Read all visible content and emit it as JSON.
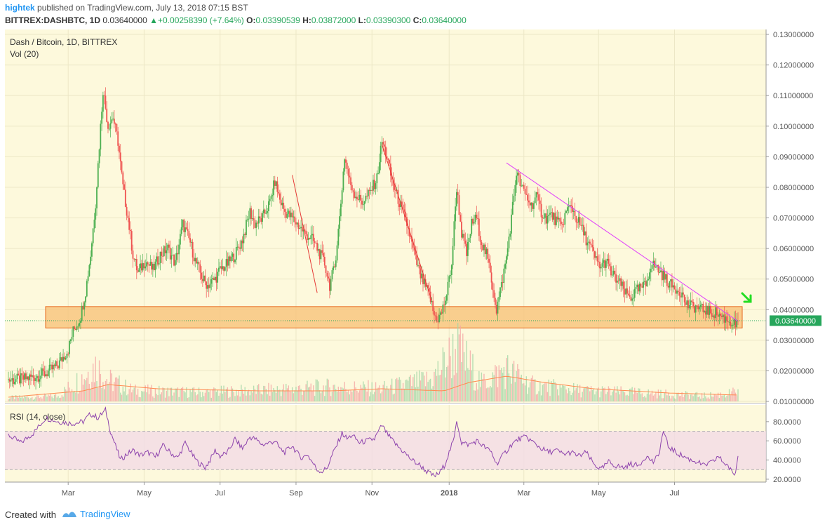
{
  "header": {
    "author": "hightek",
    "published_text": "published on TradingView.com, July 13, 2018 07:15 BST",
    "symbol": "BITTREX:DASHBTC, 1D",
    "last_price": "0.03640000",
    "change": "+0.00258390 (+7.64%)",
    "o_label": "O:",
    "o_value": "0.03390539",
    "h_label": "H:",
    "h_value": "0.03872000",
    "l_label": "L:",
    "l_value": "0.03390300",
    "c_label": "C:",
    "c_value": "0.03640000"
  },
  "legend": {
    "series_title": "Dash / Bitcoin, 1D, BITTREX",
    "volume_label": "Vol (20)",
    "rsi_label": "RSI (14, close)"
  },
  "footer": {
    "created_with": "Created with",
    "brand": "TradingView"
  },
  "colors": {
    "up": "#4caf50",
    "down": "#ef5350",
    "background": "#fdf9dc",
    "support_zone": "#f8c37a",
    "support_border": "#e8651a",
    "trend_red": "#e53935",
    "trend_magenta": "#e040fb",
    "rsi_line": "#8e44ad",
    "rsi_band": "#f3dbe6",
    "price_label_bg": "#26a65b",
    "arrow": "#22dd22"
  },
  "chart_data": [
    {
      "type": "candlestick",
      "title": "Dash / Bitcoin, 1D, BITTREX",
      "x_ticks": [
        "Mar",
        "May",
        "Jul",
        "Sep",
        "Nov",
        "2018",
        "Mar",
        "May",
        "Jul"
      ],
      "y_ticks": [
        "0.13000000",
        "0.12000000",
        "0.11000000",
        "0.10000000",
        "0.09000000",
        "0.08000000",
        "0.07000000",
        "0.06000000",
        "0.05000000",
        "0.04000000",
        "0.03000000",
        "0.02000000",
        "0.01000000"
      ],
      "y_range": [
        0.01,
        0.13
      ],
      "last_price_label": "0.03640000",
      "last_price": 0.0364,
      "close_series": [
        [
          0,
          0.017
        ],
        [
          10,
          0.0172
        ],
        [
          20,
          0.018
        ],
        [
          30,
          0.0192
        ],
        [
          40,
          0.022
        ],
        [
          48,
          0.027
        ],
        [
          52,
          0.033
        ],
        [
          56,
          0.036
        ],
        [
          58,
          0.038
        ],
        [
          62,
          0.046
        ],
        [
          66,
          0.058
        ],
        [
          70,
          0.075
        ],
        [
          74,
          0.1
        ],
        [
          76,
          0.112
        ],
        [
          80,
          0.1
        ],
        [
          84,
          0.103
        ],
        [
          88,
          0.095
        ],
        [
          92,
          0.08
        ],
        [
          96,
          0.07
        ],
        [
          100,
          0.058
        ],
        [
          104,
          0.052
        ],
        [
          110,
          0.056
        ],
        [
          116,
          0.053
        ],
        [
          122,
          0.058
        ],
        [
          128,
          0.06
        ],
        [
          134,
          0.055
        ],
        [
          140,
          0.068
        ],
        [
          146,
          0.062
        ],
        [
          150,
          0.056
        ],
        [
          156,
          0.05
        ],
        [
          160,
          0.048
        ],
        [
          166,
          0.05
        ],
        [
          170,
          0.053
        ],
        [
          176,
          0.055
        ],
        [
          182,
          0.058
        ],
        [
          188,
          0.063
        ],
        [
          194,
          0.072
        ],
        [
          198,
          0.068
        ],
        [
          204,
          0.07
        ],
        [
          210,
          0.075
        ],
        [
          214,
          0.082
        ],
        [
          218,
          0.076
        ],
        [
          222,
          0.072
        ],
        [
          228,
          0.07
        ],
        [
          232,
          0.068
        ],
        [
          238,
          0.065
        ],
        [
          244,
          0.063
        ],
        [
          248,
          0.06
        ],
        [
          254,
          0.055
        ],
        [
          258,
          0.048
        ],
        [
          262,
          0.054
        ],
        [
          266,
          0.07
        ],
        [
          270,
          0.09
        ],
        [
          274,
          0.082
        ],
        [
          278,
          0.078
        ],
        [
          284,
          0.075
        ],
        [
          290,
          0.078
        ],
        [
          296,
          0.083
        ],
        [
          300,
          0.095
        ],
        [
          304,
          0.09
        ],
        [
          308,
          0.082
        ],
        [
          314,
          0.075
        ],
        [
          320,
          0.068
        ],
        [
          326,
          0.058
        ],
        [
          330,
          0.052
        ],
        [
          334,
          0.048
        ],
        [
          338,
          0.045
        ],
        [
          342,
          0.038
        ],
        [
          345,
          0.037
        ],
        [
          348,
          0.039
        ],
        [
          352,
          0.045
        ],
        [
          356,
          0.055
        ],
        [
          360,
          0.08
        ],
        [
          364,
          0.065
        ],
        [
          368,
          0.058
        ],
        [
          372,
          0.068
        ],
        [
          376,
          0.07
        ],
        [
          380,
          0.062
        ],
        [
          384,
          0.058
        ],
        [
          388,
          0.05
        ],
        [
          392,
          0.04
        ],
        [
          396,
          0.048
        ],
        [
          400,
          0.057
        ],
        [
          404,
          0.07
        ],
        [
          408,
          0.085
        ],
        [
          412,
          0.08
        ],
        [
          416,
          0.077
        ],
        [
          420,
          0.074
        ],
        [
          424,
          0.077
        ],
        [
          428,
          0.072
        ],
        [
          432,
          0.07
        ],
        [
          436,
          0.071
        ],
        [
          440,
          0.069
        ],
        [
          444,
          0.067
        ],
        [
          448,
          0.072
        ],
        [
          452,
          0.074
        ],
        [
          456,
          0.07
        ],
        [
          460,
          0.067
        ],
        [
          464,
          0.063
        ],
        [
          468,
          0.06
        ],
        [
          472,
          0.056
        ],
        [
          476,
          0.054
        ],
        [
          480,
          0.056
        ],
        [
          484,
          0.052
        ],
        [
          488,
          0.05
        ],
        [
          492,
          0.048
        ],
        [
          496,
          0.045
        ],
        [
          500,
          0.044
        ],
        [
          504,
          0.046
        ],
        [
          508,
          0.047
        ],
        [
          512,
          0.048
        ],
        [
          516,
          0.055
        ],
        [
          520,
          0.054
        ],
        [
          524,
          0.052
        ],
        [
          528,
          0.05
        ],
        [
          532,
          0.048
        ],
        [
          536,
          0.047
        ],
        [
          540,
          0.046
        ],
        [
          544,
          0.042
        ],
        [
          548,
          0.041
        ],
        [
          552,
          0.041
        ],
        [
          556,
          0.04
        ],
        [
          560,
          0.04
        ],
        [
          564,
          0.039
        ],
        [
          568,
          0.039
        ],
        [
          572,
          0.038
        ],
        [
          576,
          0.037
        ],
        [
          580,
          0.036
        ],
        [
          584,
          0.035
        ],
        [
          586,
          0.0364
        ]
      ],
      "volume_series": [
        [
          0,
          2
        ],
        [
          40,
          3
        ],
        [
          60,
          14
        ],
        [
          70,
          20
        ],
        [
          80,
          12
        ],
        [
          100,
          6
        ],
        [
          150,
          5
        ],
        [
          200,
          6
        ],
        [
          260,
          8
        ],
        [
          300,
          7
        ],
        [
          340,
          12
        ],
        [
          360,
          30
        ],
        [
          380,
          10
        ],
        [
          400,
          18
        ],
        [
          420,
          9
        ],
        [
          460,
          6
        ],
        [
          500,
          5
        ],
        [
          560,
          3
        ],
        [
          586,
          5
        ]
      ],
      "volume_ma_series": [
        [
          0,
          2
        ],
        [
          60,
          5
        ],
        [
          80,
          8
        ],
        [
          120,
          6
        ],
        [
          200,
          5
        ],
        [
          260,
          5
        ],
        [
          300,
          6
        ],
        [
          350,
          5
        ],
        [
          370,
          9
        ],
        [
          400,
          12
        ],
        [
          430,
          9
        ],
        [
          470,
          6
        ],
        [
          530,
          4
        ],
        [
          586,
          3
        ]
      ],
      "support_zone": [
        0.034,
        0.041
      ],
      "trend_lines": [
        {
          "color": "red",
          "from": [
            228,
            0.084
          ],
          "to": [
            248,
            0.0455
          ]
        },
        {
          "color": "red",
          "from": [
            300,
            0.094
          ],
          "to": [
            340,
            0.043
          ]
        },
        {
          "color": "magenta",
          "from": [
            400,
            0.088
          ],
          "to": [
            586,
            0.0362
          ]
        }
      ]
    },
    {
      "type": "line",
      "title": "RSI (14, close)",
      "y_ticks": [
        "80.0000",
        "60.0000",
        "40.0000",
        "20.0000"
      ],
      "y_range": [
        17,
        96
      ],
      "bands": [
        30,
        70
      ],
      "values": [
        [
          0,
          66
        ],
        [
          10,
          58
        ],
        [
          20,
          68
        ],
        [
          30,
          84
        ],
        [
          40,
          80
        ],
        [
          52,
          78
        ],
        [
          60,
          80
        ],
        [
          66,
          88
        ],
        [
          72,
          84
        ],
        [
          78,
          92
        ],
        [
          82,
          70
        ],
        [
          86,
          55
        ],
        [
          90,
          40
        ],
        [
          94,
          45
        ],
        [
          100,
          50
        ],
        [
          106,
          45
        ],
        [
          112,
          48
        ],
        [
          118,
          43
        ],
        [
          124,
          55
        ],
        [
          130,
          48
        ],
        [
          136,
          42
        ],
        [
          142,
          58
        ],
        [
          148,
          45
        ],
        [
          152,
          38
        ],
        [
          158,
          32
        ],
        [
          162,
          40
        ],
        [
          166,
          50
        ],
        [
          170,
          44
        ],
        [
          176,
          48
        ],
        [
          182,
          62
        ],
        [
          188,
          52
        ],
        [
          194,
          64
        ],
        [
          198,
          62
        ],
        [
          204,
          56
        ],
        [
          210,
          58
        ],
        [
          214,
          60
        ],
        [
          218,
          52
        ],
        [
          222,
          48
        ],
        [
          228,
          55
        ],
        [
          232,
          47
        ],
        [
          236,
          42
        ],
        [
          240,
          46
        ],
        [
          244,
          38
        ],
        [
          248,
          30
        ],
        [
          252,
          28
        ],
        [
          256,
          32
        ],
        [
          260,
          45
        ],
        [
          264,
          56
        ],
        [
          268,
          68
        ],
        [
          272,
          62
        ],
        [
          276,
          66
        ],
        [
          282,
          58
        ],
        [
          288,
          60
        ],
        [
          294,
          62
        ],
        [
          300,
          76
        ],
        [
          306,
          64
        ],
        [
          312,
          55
        ],
        [
          318,
          48
        ],
        [
          324,
          40
        ],
        [
          330,
          35
        ],
        [
          336,
          28
        ],
        [
          342,
          23
        ],
        [
          346,
          26
        ],
        [
          350,
          34
        ],
        [
          354,
          48
        ],
        [
          358,
          62
        ],
        [
          360,
          82
        ],
        [
          364,
          58
        ],
        [
          370,
          56
        ],
        [
          376,
          60
        ],
        [
          382,
          54
        ],
        [
          388,
          48
        ],
        [
          392,
          36
        ],
        [
          398,
          46
        ],
        [
          404,
          56
        ],
        [
          410,
          62
        ],
        [
          416,
          64
        ],
        [
          422,
          58
        ],
        [
          428,
          52
        ],
        [
          434,
          48
        ],
        [
          440,
          50
        ],
        [
          446,
          46
        ],
        [
          452,
          48
        ],
        [
          458,
          44
        ],
        [
          464,
          48
        ],
        [
          470,
          36
        ],
        [
          476,
          30
        ],
        [
          482,
          38
        ],
        [
          488,
          34
        ],
        [
          494,
          32
        ],
        [
          500,
          36
        ],
        [
          506,
          34
        ],
        [
          512,
          44
        ],
        [
          518,
          38
        ],
        [
          522,
          44
        ],
        [
          526,
          70
        ],
        [
          530,
          54
        ],
        [
          536,
          48
        ],
        [
          542,
          44
        ],
        [
          548,
          40
        ],
        [
          554,
          38
        ],
        [
          558,
          34
        ],
        [
          562,
          36
        ],
        [
          566,
          38
        ],
        [
          570,
          44
        ],
        [
          574,
          38
        ],
        [
          578,
          34
        ],
        [
          582,
          25
        ],
        [
          584,
          27
        ],
        [
          586,
          44
        ]
      ]
    }
  ]
}
